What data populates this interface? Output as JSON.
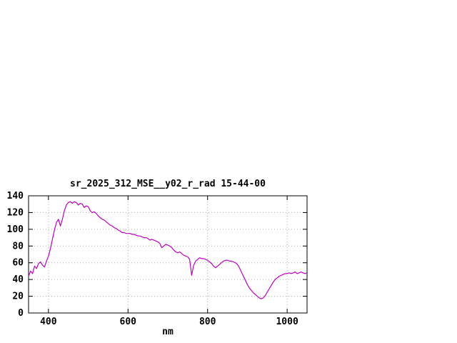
{
  "page": {
    "background_color": "#ffffff"
  },
  "chart_data": {
    "type": "line",
    "title": "sr_2025_312_MSE__y02_r_rad 15-44-00",
    "xlabel": "nm",
    "ylabel": "",
    "xlim": [
      350,
      1050
    ],
    "ylim": [
      0,
      140
    ],
    "x_ticks": [
      400,
      600,
      800,
      1000
    ],
    "y_ticks": [
      0,
      20,
      40,
      60,
      80,
      100,
      120,
      140
    ],
    "grid": true,
    "grid_color": "#aaaaaa",
    "line_color": "#c000c0",
    "border_color": "#000000",
    "legend": "none",
    "x": [
      350,
      355,
      360,
      365,
      370,
      375,
      380,
      385,
      390,
      395,
      400,
      405,
      410,
      415,
      420,
      425,
      430,
      435,
      440,
      445,
      450,
      455,
      460,
      465,
      470,
      475,
      480,
      485,
      490,
      495,
      500,
      505,
      510,
      515,
      520,
      525,
      530,
      535,
      540,
      545,
      550,
      555,
      560,
      565,
      570,
      575,
      580,
      585,
      590,
      595,
      600,
      605,
      610,
      615,
      620,
      625,
      630,
      635,
      640,
      645,
      650,
      655,
      660,
      665,
      670,
      675,
      680,
      685,
      690,
      695,
      700,
      705,
      710,
      715,
      720,
      725,
      730,
      735,
      740,
      745,
      750,
      755,
      760,
      765,
      770,
      775,
      780,
      785,
      790,
      795,
      800,
      805,
      810,
      815,
      820,
      825,
      830,
      835,
      840,
      845,
      850,
      855,
      860,
      865,
      870,
      875,
      880,
      885,
      890,
      895,
      900,
      905,
      910,
      915,
      920,
      925,
      930,
      935,
      940,
      945,
      950,
      955,
      960,
      965,
      970,
      975,
      980,
      985,
      990,
      995,
      1000,
      1005,
      1010,
      1015,
      1020,
      1025,
      1030,
      1035,
      1040,
      1045,
      1050
    ],
    "y": [
      44,
      50,
      47,
      56,
      53,
      59,
      61,
      57,
      55,
      62,
      68,
      77,
      88,
      99,
      108,
      112,
      104,
      112,
      122,
      129,
      132,
      133,
      131,
      133,
      132,
      129,
      131,
      130,
      126,
      128,
      127,
      122,
      120,
      121,
      119,
      116,
      114,
      112,
      111,
      109,
      107,
      105,
      104,
      102,
      101,
      99,
      98,
      96,
      96,
      95,
      95,
      95,
      94,
      94,
      93,
      92,
      92,
      91,
      90,
      90,
      89,
      87,
      88,
      87,
      86,
      85,
      83,
      78,
      80,
      82,
      81,
      80,
      78,
      75,
      73,
      72,
      73,
      71,
      69,
      68,
      67,
      64,
      45,
      57,
      62,
      64,
      66,
      65,
      65,
      64,
      63,
      61,
      59,
      56,
      54,
      56,
      58,
      60,
      62,
      63,
      63,
      62,
      62,
      61,
      60,
      58,
      54,
      49,
      44,
      39,
      34,
      30,
      27,
      24,
      22,
      20,
      18,
      17,
      18,
      21,
      25,
      29,
      33,
      37,
      40,
      42,
      44,
      45,
      46,
      47,
      47,
      48,
      47,
      48,
      49,
      47,
      48,
      49,
      48,
      47,
      48
    ]
  }
}
